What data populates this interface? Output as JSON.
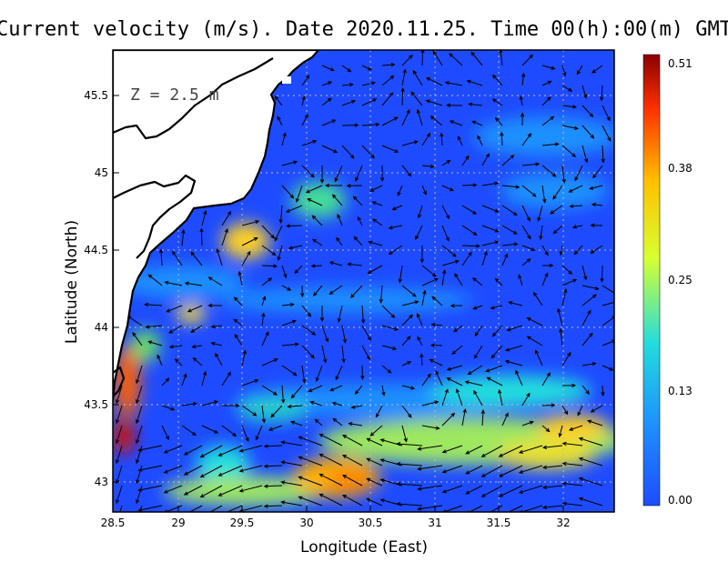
{
  "title": "Current velocity (m/s). Date 2020.11.25. Time 00(h):00(m) GMT",
  "depth_label": "Z = 2.5 m",
  "map": {
    "xlabel": "Longitude (East)",
    "ylabel": "Latitude (North)",
    "lon_range": [
      28.5,
      32.4
    ],
    "lat_range": [
      42.8,
      45.8
    ],
    "lon_ticks": [
      "28.5",
      "29",
      "29.5",
      "30",
      "30.5",
      "31",
      "31.5",
      "32"
    ],
    "lat_ticks": [
      "43",
      "43.5",
      "44",
      "44.5",
      "45",
      "45.5"
    ],
    "grid": true,
    "colors": {
      "land": "#ffffff",
      "coast": "#000000",
      "grid": "#bbbbbb",
      "arrow": "#000000"
    }
  },
  "colorbar": {
    "ticks": [
      "0.51",
      "0.38",
      "0.25",
      "0.13",
      "0.00"
    ],
    "range": [
      0.0,
      0.51
    ],
    "colors": [
      "#1e4bff",
      "#1e90ff",
      "#22dddd",
      "#d8ff30",
      "#ffc000",
      "#ff3000",
      "#8b0000"
    ]
  }
}
